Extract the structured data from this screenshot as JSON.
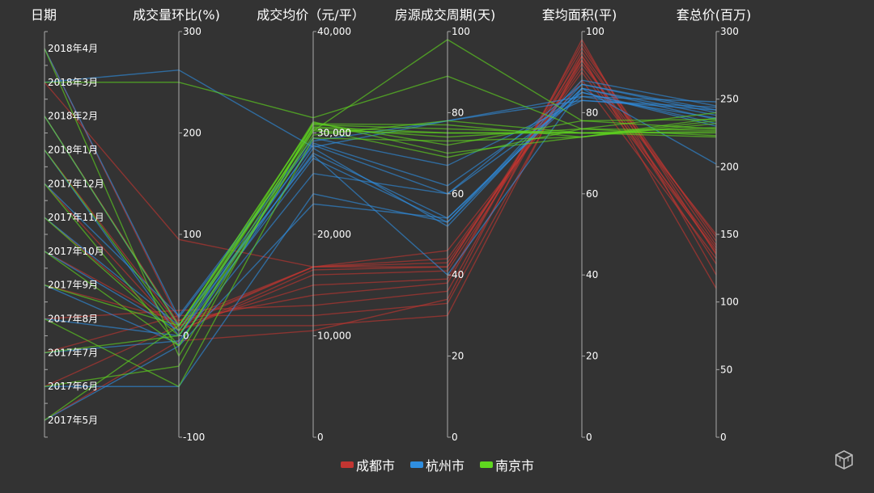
{
  "chart_data": {
    "type": "parallel",
    "axes": [
      {
        "name": "日期",
        "type": "category",
        "categories": [
          "2017年5月",
          "2017年6月",
          "2017年7月",
          "2017年8月",
          "2017年9月",
          "2017年10月",
          "2017年11月",
          "2017年12月",
          "2018年1月",
          "2018年2月",
          "2018年3月",
          "2018年4月"
        ]
      },
      {
        "name": "成交量环比(%)",
        "type": "value",
        "min": -100,
        "max": 300,
        "ticks": [
          "-100",
          "0",
          "100",
          "200",
          "300"
        ]
      },
      {
        "name": "成交均价（元/平）",
        "type": "value",
        "min": 0,
        "max": 40000,
        "ticks": [
          "0",
          "10,000",
          "20,000",
          "30,000",
          "40,000"
        ]
      },
      {
        "name": "房源成交周期(天)",
        "type": "value",
        "min": 0,
        "max": 100,
        "ticks": [
          "0",
          "20",
          "40",
          "60",
          "80",
          "100"
        ]
      },
      {
        "name": "套均面积(平)",
        "type": "value",
        "min": 0,
        "max": 100,
        "ticks": [
          "0",
          "20",
          "40",
          "60",
          "80",
          "100"
        ]
      },
      {
        "name": "套总价(百万)",
        "type": "value",
        "min": 0,
        "max": 300,
        "ticks": [
          "0",
          "50",
          "100",
          "150",
          "200",
          "250",
          "300"
        ]
      }
    ],
    "legend_position": "bottom-center",
    "series": [
      {
        "name": "成都市",
        "color": "#c23531",
        "data": [
          [
            "2017年5月",
            -5,
            10500,
            34,
            98,
            120
          ],
          [
            "2017年6月",
            10,
            11000,
            30,
            94,
            110
          ],
          [
            "2017年7月",
            20,
            12000,
            33,
            93,
            128
          ],
          [
            "2017年8月",
            25,
            13000,
            36,
            95,
            142
          ],
          [
            "2017年9月",
            15,
            14000,
            38,
            97,
            135
          ],
          [
            "2017年10月",
            10,
            15000,
            39,
            96,
            145
          ],
          [
            "2017年11月",
            5,
            16000,
            41,
            92,
            150
          ],
          [
            "2017年12月",
            5,
            16500,
            42,
            94,
            148
          ],
          [
            "2018年1月",
            10,
            16800,
            43,
            91,
            140
          ],
          [
            "2018年2月",
            12,
            16800,
            44,
            90,
            138
          ],
          [
            "2018年3月",
            95,
            16800,
            46,
            88,
            132
          ],
          [
            "2018年4月",
            15,
            16800,
            42,
            93,
            136
          ]
        ]
      },
      {
        "name": "杭州市",
        "color": "#2f8ee0",
        "data": [
          [
            "2017年5月",
            -10,
            23000,
            54,
            85,
            232
          ],
          [
            "2017年6月",
            -50,
            24000,
            53,
            86,
            235
          ],
          [
            "2017年7月",
            -5,
            26000,
            60,
            87,
            240
          ],
          [
            "2017年8月",
            0,
            27500,
            53,
            88,
            245
          ],
          [
            "2017年9月",
            -8,
            28500,
            52,
            87,
            242
          ],
          [
            "2017年10月",
            5,
            28000,
            54,
            86,
            238
          ],
          [
            "2017年11月",
            10,
            28800,
            60,
            84,
            236
          ],
          [
            "2017年12月",
            20,
            29500,
            67,
            83,
            244
          ],
          [
            "2018年1月",
            0,
            29000,
            62,
            85,
            230
          ],
          [
            "2018年2月",
            10,
            27800,
            40,
            86,
            202
          ],
          [
            "2018年3月",
            262,
            28600,
            78,
            84,
            248
          ],
          [
            "2018年4月",
            18,
            29200,
            78,
            83,
            242
          ]
        ]
      },
      {
        "name": "南京市",
        "color": "#5fd71f",
        "data": [
          [
            "2017年5月",
            10,
            30200,
            75,
            75,
            222
          ],
          [
            "2017年6月",
            -30,
            31000,
            72,
            78,
            228
          ],
          [
            "2017年7月",
            0,
            30600,
            75,
            75,
            226
          ],
          [
            "2017年8月",
            -50,
            29500,
            73,
            74,
            232
          ],
          [
            "2017年9月",
            10,
            30800,
            76,
            75,
            225
          ],
          [
            "2017年10月",
            -10,
            30500,
            74,
            76,
            227
          ],
          [
            "2017年11月",
            0,
            31100,
            70,
            74,
            234
          ],
          [
            "2017年12月",
            -10,
            29800,
            78,
            75,
            229
          ],
          [
            "2018年1月",
            5,
            30400,
            69,
            76,
            223
          ],
          [
            "2018年2月",
            10,
            30900,
            77,
            74,
            236
          ],
          [
            "2018年3月",
            250,
            31500,
            89,
            76,
            240
          ],
          [
            "2018年4月",
            -20,
            30200,
            98,
            78,
            235
          ]
        ]
      }
    ]
  },
  "toolbox": {
    "icon": "3d-box-icon"
  }
}
